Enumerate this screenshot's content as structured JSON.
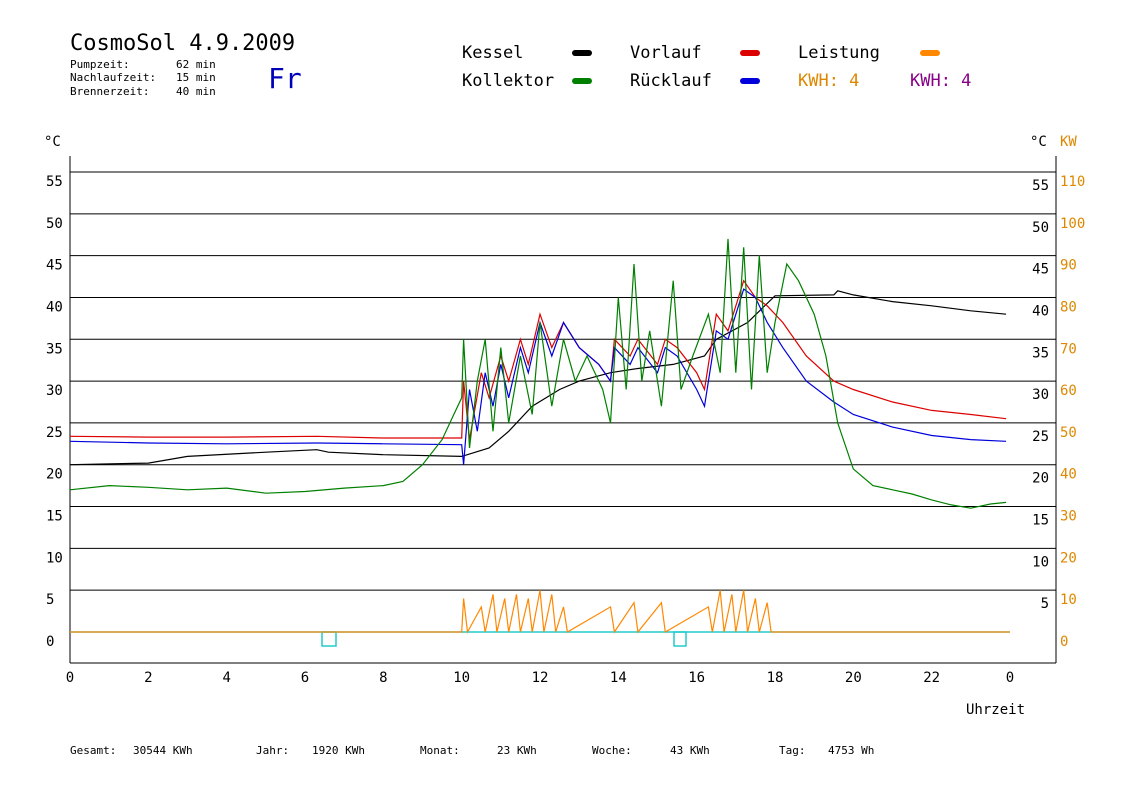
{
  "header": {
    "title": "CosmoSol 4.9.2009",
    "day": "Fr",
    "info": [
      {
        "label": "Pumpzeit:",
        "value": "62 min"
      },
      {
        "label": "Nachlaufzeit:",
        "value": "15 min"
      },
      {
        "label": "Brennerzeit:",
        "value": "40 min"
      }
    ]
  },
  "legend": {
    "items": [
      {
        "label": "Kessel",
        "color": "#000000"
      },
      {
        "label": "Vorlauf",
        "color": "#dd0000"
      },
      {
        "label": "Leistung",
        "color": "#ff8800"
      },
      {
        "label": "Kollektor",
        "color": "#008000"
      },
      {
        "label": "Rücklauf",
        "color": "#0000dd"
      }
    ],
    "kwh": [
      {
        "text": "KWH: 4",
        "color": "#dd8800"
      },
      {
        "text": "KWH: 4",
        "color": "#880088"
      }
    ]
  },
  "footer": [
    {
      "label": "Gesamt:",
      "value": "30544 KWh"
    },
    {
      "label": "Jahr:",
      "value": "1920 KWh"
    },
    {
      "label": "Monat:",
      "value": "23 KWh"
    },
    {
      "label": "Woche:",
      "value": "43 KWh"
    },
    {
      "label": "Tag:",
      "value": "4753 Wh"
    }
  ],
  "chart_data": {
    "type": "line",
    "xlabel": "Uhrzeit",
    "ylabel_left": "°C",
    "ylabel_right": "°C",
    "ylabel_right2": "KW",
    "x_ticks": [
      "0",
      "2",
      "4",
      "6",
      "8",
      "10",
      "12",
      "14",
      "16",
      "18",
      "20",
      "22",
      "0"
    ],
    "xlim": [
      0,
      24
    ],
    "ylim": [
      0,
      55
    ],
    "y_ticks_left": [
      "0",
      "5",
      "10",
      "15",
      "20",
      "25",
      "30",
      "35",
      "40",
      "45",
      "50",
      "55"
    ],
    "y_ticks_right": [
      "5",
      "10",
      "15",
      "20",
      "25",
      "30",
      "35",
      "40",
      "45",
      "50",
      "55"
    ],
    "y_ticks_kw": [
      "0",
      "10",
      "20",
      "30",
      "40",
      "50",
      "60",
      "70",
      "80",
      "90",
      "100",
      "110"
    ],
    "grid": true,
    "series": [
      {
        "name": "Kessel",
        "color": "#000000",
        "points": [
          [
            0,
            20
          ],
          [
            2,
            20.2
          ],
          [
            3,
            21
          ],
          [
            5,
            21.5
          ],
          [
            6.3,
            21.8
          ],
          [
            6.6,
            21.5
          ],
          [
            8,
            21.2
          ],
          [
            10,
            21
          ],
          [
            10.7,
            22
          ],
          [
            11.2,
            24
          ],
          [
            11.8,
            27
          ],
          [
            12.5,
            29
          ],
          [
            13,
            30
          ],
          [
            13.8,
            31
          ],
          [
            14.5,
            31.5
          ],
          [
            15.4,
            32
          ],
          [
            16.2,
            33
          ],
          [
            16.5,
            35
          ],
          [
            17.3,
            37
          ],
          [
            18,
            40.2
          ],
          [
            19.5,
            40.3
          ],
          [
            19.6,
            40.8
          ],
          [
            20,
            40.3
          ],
          [
            21,
            39.5
          ],
          [
            22,
            39
          ],
          [
            23,
            38.4
          ],
          [
            23.9,
            38
          ]
        ]
      },
      {
        "name": "Vorlauf",
        "color": "#dd0000",
        "points": [
          [
            0,
            23.4
          ],
          [
            2,
            23.3
          ],
          [
            4,
            23.3
          ],
          [
            6.3,
            23.4
          ],
          [
            8,
            23.2
          ],
          [
            10,
            23.2
          ],
          [
            10.05,
            30
          ],
          [
            10.2,
            23
          ],
          [
            10.5,
            31
          ],
          [
            10.7,
            28
          ],
          [
            11,
            33
          ],
          [
            11.2,
            30
          ],
          [
            11.5,
            35
          ],
          [
            11.7,
            32
          ],
          [
            12,
            38
          ],
          [
            12.3,
            34
          ],
          [
            12.6,
            37
          ],
          [
            13,
            34
          ],
          [
            13.5,
            32
          ],
          [
            13.8,
            30
          ],
          [
            13.9,
            35
          ],
          [
            14.3,
            33
          ],
          [
            14.5,
            35
          ],
          [
            15,
            32
          ],
          [
            15.2,
            35
          ],
          [
            15.5,
            34
          ],
          [
            16,
            31
          ],
          [
            16.2,
            29
          ],
          [
            16.5,
            38
          ],
          [
            16.8,
            36
          ],
          [
            17.2,
            42
          ],
          [
            17.5,
            40
          ],
          [
            17.8,
            39
          ],
          [
            18.2,
            37
          ],
          [
            18.8,
            33
          ],
          [
            19.5,
            30
          ],
          [
            20,
            29
          ],
          [
            21,
            27.5
          ],
          [
            22,
            26.5
          ],
          [
            23,
            26
          ],
          [
            23.9,
            25.5
          ]
        ]
      },
      {
        "name": "Rücklauf",
        "color": "#0000dd",
        "points": [
          [
            0,
            22.8
          ],
          [
            2,
            22.6
          ],
          [
            4,
            22.5
          ],
          [
            6.3,
            22.6
          ],
          [
            8,
            22.5
          ],
          [
            10,
            22.4
          ],
          [
            10.05,
            20
          ],
          [
            10.2,
            29
          ],
          [
            10.4,
            24
          ],
          [
            10.6,
            31
          ],
          [
            10.8,
            27
          ],
          [
            11,
            32
          ],
          [
            11.2,
            28
          ],
          [
            11.5,
            34
          ],
          [
            11.7,
            31
          ],
          [
            12,
            37
          ],
          [
            12.3,
            33
          ],
          [
            12.6,
            37
          ],
          [
            13,
            34
          ],
          [
            13.5,
            32
          ],
          [
            13.8,
            30
          ],
          [
            13.9,
            34
          ],
          [
            14.3,
            32
          ],
          [
            14.5,
            34
          ],
          [
            15,
            31
          ],
          [
            15.2,
            34
          ],
          [
            15.5,
            33
          ],
          [
            16,
            29
          ],
          [
            16.2,
            27
          ],
          [
            16.5,
            36
          ],
          [
            16.8,
            35
          ],
          [
            17.2,
            41
          ],
          [
            17.5,
            40
          ],
          [
            17.8,
            37
          ],
          [
            18.2,
            34
          ],
          [
            18.8,
            30
          ],
          [
            19.5,
            27.5
          ],
          [
            20,
            26
          ],
          [
            21,
            24.5
          ],
          [
            22,
            23.5
          ],
          [
            23,
            23
          ],
          [
            23.9,
            22.8
          ]
        ]
      },
      {
        "name": "Kollektor",
        "color": "#008000",
        "points": [
          [
            0,
            17
          ],
          [
            1,
            17.5
          ],
          [
            2,
            17.3
          ],
          [
            3,
            17
          ],
          [
            4,
            17.2
          ],
          [
            5,
            16.6
          ],
          [
            6,
            16.8
          ],
          [
            7,
            17.2
          ],
          [
            8,
            17.5
          ],
          [
            8.5,
            18
          ],
          [
            9,
            20
          ],
          [
            9.5,
            23
          ],
          [
            9.8,
            26
          ],
          [
            10,
            28
          ],
          [
            10.05,
            35
          ],
          [
            10.2,
            22
          ],
          [
            10.4,
            30
          ],
          [
            10.6,
            35
          ],
          [
            10.8,
            24
          ],
          [
            11,
            34
          ],
          [
            11.2,
            25
          ],
          [
            11.5,
            33
          ],
          [
            11.8,
            26
          ],
          [
            12,
            37
          ],
          [
            12.3,
            27
          ],
          [
            12.6,
            35
          ],
          [
            12.9,
            30
          ],
          [
            13.2,
            33
          ],
          [
            13.6,
            29
          ],
          [
            13.8,
            25
          ],
          [
            14,
            40
          ],
          [
            14.2,
            29
          ],
          [
            14.4,
            44
          ],
          [
            14.6,
            30
          ],
          [
            14.8,
            36
          ],
          [
            15.1,
            27
          ],
          [
            15.4,
            42
          ],
          [
            15.6,
            29
          ],
          [
            15.9,
            33
          ],
          [
            16.3,
            38
          ],
          [
            16.6,
            31
          ],
          [
            16.8,
            47
          ],
          [
            17,
            31
          ],
          [
            17.2,
            46
          ],
          [
            17.4,
            29
          ],
          [
            17.6,
            45
          ],
          [
            17.8,
            31
          ],
          [
            18,
            37
          ],
          [
            18.3,
            44
          ],
          [
            18.6,
            42
          ],
          [
            19,
            38
          ],
          [
            19.3,
            33
          ],
          [
            19.6,
            25
          ],
          [
            20,
            19.5
          ],
          [
            20.5,
            17.5
          ],
          [
            21,
            17
          ],
          [
            21.5,
            16.5
          ],
          [
            22,
            15.8
          ],
          [
            22.5,
            15.2
          ],
          [
            23,
            14.8
          ],
          [
            23.5,
            15.3
          ],
          [
            23.9,
            15.5
          ]
        ]
      },
      {
        "name": "Leistung",
        "color": "#ff8800",
        "axis": "kw",
        "points": [
          [
            0,
            0
          ],
          [
            10,
            0
          ],
          [
            10.05,
            8
          ],
          [
            10.15,
            0
          ],
          [
            10.5,
            6
          ],
          [
            10.6,
            0
          ],
          [
            10.8,
            9
          ],
          [
            10.9,
            0
          ],
          [
            11.1,
            8
          ],
          [
            11.2,
            0
          ],
          [
            11.4,
            9
          ],
          [
            11.5,
            0
          ],
          [
            11.7,
            8
          ],
          [
            11.8,
            0
          ],
          [
            12,
            10
          ],
          [
            12.1,
            0
          ],
          [
            12.3,
            9
          ],
          [
            12.4,
            0
          ],
          [
            12.6,
            6
          ],
          [
            12.7,
            0
          ],
          [
            13.8,
            6
          ],
          [
            13.9,
            0
          ],
          [
            14.4,
            7
          ],
          [
            14.5,
            0
          ],
          [
            15.1,
            7
          ],
          [
            15.2,
            0
          ],
          [
            16.3,
            6
          ],
          [
            16.4,
            0
          ],
          [
            16.6,
            10
          ],
          [
            16.7,
            0
          ],
          [
            16.9,
            9
          ],
          [
            17,
            0
          ],
          [
            17.2,
            10
          ],
          [
            17.3,
            0
          ],
          [
            17.5,
            8
          ],
          [
            17.6,
            0
          ],
          [
            17.8,
            7
          ],
          [
            17.9,
            0
          ],
          [
            24,
            0
          ]
        ]
      }
    ]
  }
}
